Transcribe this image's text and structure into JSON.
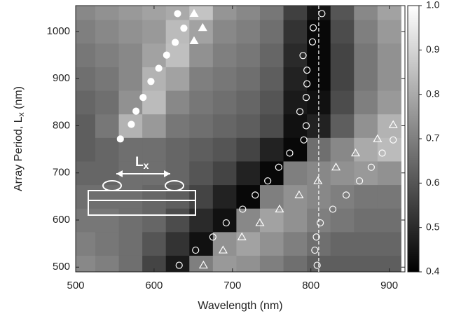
{
  "chart_data": {
    "type": "heatmap",
    "x_label": "Wavelength (nm)",
    "y_label": [
      "Array Period, L",
      "x",
      " (nm)"
    ],
    "inset_label": {
      "main": "L",
      "sub": "x"
    },
    "xlim": [
      500,
      920
    ],
    "ylim": [
      490,
      1055
    ],
    "xticks": [
      500,
      600,
      700,
      800,
      900
    ],
    "yticks": [
      500,
      600,
      700,
      800,
      900,
      1000
    ],
    "zlim": [
      0.4,
      1.0
    ],
    "zticks": [
      0.4,
      0.5,
      0.6,
      0.7,
      0.8,
      0.9,
      {
        "value": 1,
        "label": "1.0"
      }
    ],
    "colormap": "gray",
    "vline": 810,
    "x_centers": [
      510,
      540,
      570,
      600,
      630,
      660,
      690,
      720,
      750,
      780,
      810,
      840,
      870,
      900
    ],
    "y_centers": [
      500,
      550,
      600,
      650,
      700,
      750,
      800,
      850,
      900,
      950,
      1000,
      1050
    ],
    "z": [
      [
        0.72,
        0.7,
        0.66,
        0.56,
        0.46,
        0.7,
        0.76,
        0.74,
        0.7,
        0.66,
        0.62,
        0.62,
        0.62,
        0.62
      ],
      [
        0.7,
        0.68,
        0.66,
        0.6,
        0.52,
        0.44,
        0.74,
        0.78,
        0.74,
        0.7,
        0.66,
        0.64,
        0.64,
        0.64
      ],
      [
        0.68,
        0.68,
        0.66,
        0.64,
        0.58,
        0.5,
        0.44,
        0.72,
        0.78,
        0.74,
        0.7,
        0.68,
        0.66,
        0.66
      ],
      [
        0.66,
        0.66,
        0.66,
        0.64,
        0.62,
        0.56,
        0.48,
        0.42,
        0.7,
        0.74,
        0.72,
        0.7,
        0.68,
        0.68
      ],
      [
        0.64,
        0.64,
        0.66,
        0.66,
        0.64,
        0.6,
        0.56,
        0.48,
        0.42,
        0.7,
        0.72,
        0.74,
        0.76,
        0.74
      ],
      [
        0.62,
        0.64,
        0.66,
        0.66,
        0.64,
        0.62,
        0.6,
        0.56,
        0.48,
        0.42,
        0.66,
        0.72,
        0.8,
        0.84
      ],
      [
        0.62,
        0.68,
        0.82,
        0.76,
        0.68,
        0.66,
        0.64,
        0.62,
        0.58,
        0.44,
        0.48,
        0.62,
        0.74,
        0.82
      ],
      [
        0.64,
        0.66,
        0.74,
        0.84,
        0.72,
        0.68,
        0.66,
        0.64,
        0.6,
        0.46,
        0.44,
        0.58,
        0.7,
        0.76
      ],
      [
        0.66,
        0.68,
        0.72,
        0.82,
        0.78,
        0.7,
        0.68,
        0.66,
        0.62,
        0.48,
        0.42,
        0.56,
        0.68,
        0.74
      ],
      [
        0.68,
        0.7,
        0.72,
        0.78,
        0.85,
        0.74,
        0.7,
        0.68,
        0.64,
        0.5,
        0.42,
        0.56,
        0.68,
        0.74
      ],
      [
        0.7,
        0.72,
        0.74,
        0.76,
        0.84,
        0.78,
        0.72,
        0.7,
        0.66,
        0.52,
        0.42,
        0.58,
        0.7,
        0.76
      ],
      [
        0.72,
        0.74,
        0.76,
        0.78,
        0.8,
        0.86,
        0.75,
        0.72,
        0.68,
        0.55,
        0.45,
        0.6,
        0.72,
        0.78
      ]
    ],
    "series": [
      {
        "marker": "circle",
        "filled": true,
        "color": "#ffffff",
        "x": [
          630,
          638,
          627,
          616,
          606,
          596,
          586,
          577,
          571,
          557
        ],
        "values": [
          1038,
          1007,
          977,
          950,
          922,
          894,
          860,
          831,
          803,
          772
        ]
      },
      {
        "marker": "triangle",
        "filled": true,
        "color": "#ffffff",
        "x": [
          651,
          662,
          651
        ],
        "values": [
          1038,
          1008,
          980
        ]
      },
      {
        "marker": "circle",
        "filled": false,
        "color": "#ffffff",
        "x": [
          814,
          803,
          802,
          790,
          795,
          795,
          794,
          786,
          794,
          791,
          773,
          759,
          745,
          729,
          713,
          692,
          675,
          653,
          632,
          905,
          891,
          877,
          862,
          845,
          828,
          812,
          807,
          805,
          808
        ],
        "values": [
          1038,
          1008,
          978,
          949,
          918,
          889,
          860,
          830,
          800,
          770,
          742,
          712,
          683,
          653,
          623,
          594,
          564,
          536,
          504,
          770,
          742,
          712,
          683,
          653,
          623,
          594,
          564,
          536,
          504
        ]
      },
      {
        "marker": "triangle",
        "filled": false,
        "color": "#ffffff",
        "x": [
          905,
          885,
          857,
          832,
          809,
          785,
          760,
          735,
          712,
          688,
          663
        ],
        "values": [
          802,
          772,
          742,
          712,
          683,
          653,
          623,
          594,
          564,
          536,
          504
        ]
      }
    ]
  }
}
